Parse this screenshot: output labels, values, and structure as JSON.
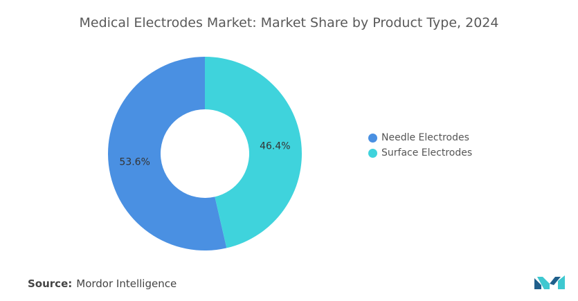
{
  "title": "Medical Electrodes Market: Market Share by Product Type, 2024",
  "source": {
    "label": "Source:",
    "text": "Mordor Intelligence"
  },
  "colors": {
    "needle": "#4a90e2",
    "surface": "#3fd3dc",
    "logo_dark": "#1f5f8b",
    "logo_light": "#3ec8d0"
  },
  "icons": {
    "logo": "mordor-intelligence-logo-icon"
  },
  "chart_data": {
    "type": "pie",
    "donut": true,
    "title": "Medical Electrodes Market: Market Share by Product Type, 2024",
    "legend_position": "right",
    "series": [
      {
        "name": "Needle Electrodes",
        "value": 53.6,
        "label": "53.6%"
      },
      {
        "name": "Surface Electrodes",
        "value": 46.4,
        "label": "46.4%"
      }
    ]
  }
}
